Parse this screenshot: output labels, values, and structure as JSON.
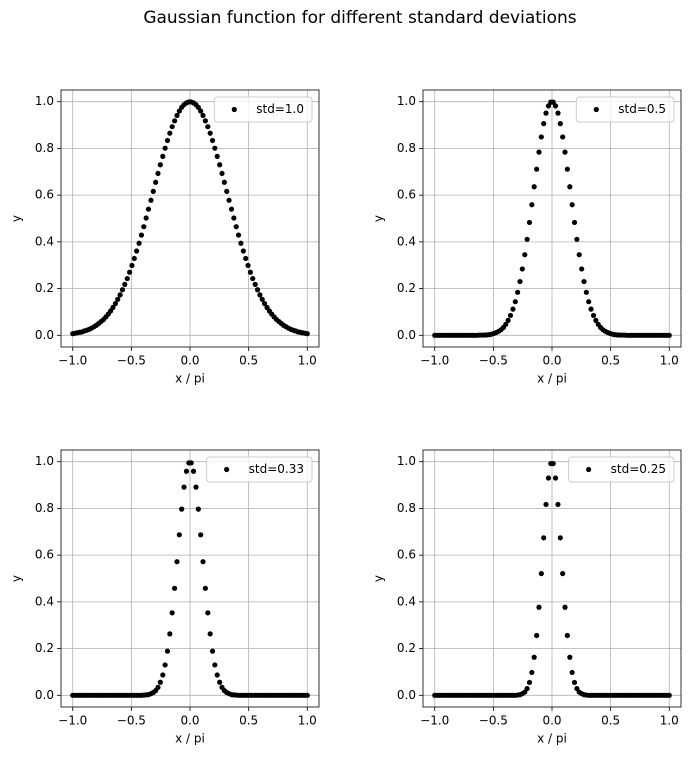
{
  "suptitle": "Gaussian function for different standard deviations",
  "chart_data": [
    {
      "type": "scatter",
      "xlabel": "x / pi",
      "ylabel": "y",
      "xlim": [
        -1.1,
        1.1
      ],
      "ylim": [
        -0.05,
        1.05
      ],
      "xticks": [
        {
          "value": -1,
          "label": "−1.0"
        },
        {
          "value": -0.5,
          "label": "−0.5"
        },
        {
          "value": 0,
          "label": "0.0"
        },
        0.5,
        {
          "value": 1,
          "label": "1.0"
        }
      ],
      "yticks": [
        {
          "value": 0,
          "label": "0.0"
        },
        0.2,
        0.4,
        0.6,
        0.8,
        {
          "value": 1,
          "label": "1.0"
        }
      ],
      "grid": true,
      "legend": "upper right",
      "x": [
        -1,
        -0.98,
        -0.96,
        -0.939,
        -0.919,
        -0.899,
        -0.879,
        -0.859,
        -0.838,
        -0.818,
        -0.798,
        -0.778,
        -0.758,
        -0.737,
        -0.717,
        -0.697,
        -0.677,
        -0.657,
        -0.636,
        -0.616,
        -0.596,
        -0.576,
        -0.556,
        -0.535,
        -0.515,
        -0.495,
        -0.475,
        -0.455,
        -0.434,
        -0.414,
        -0.394,
        -0.374,
        -0.354,
        -0.333,
        -0.313,
        -0.293,
        -0.273,
        -0.253,
        -0.232,
        -0.212,
        -0.192,
        -0.172,
        -0.152,
        -0.131,
        -0.111,
        -0.091,
        -0.071,
        -0.051,
        -0.03,
        -0.01,
        0.01,
        0.03,
        0.051,
        0.071,
        0.091,
        0.111,
        0.131,
        0.152,
        0.172,
        0.192,
        0.212,
        0.232,
        0.253,
        0.273,
        0.293,
        0.313,
        0.333,
        0.354,
        0.374,
        0.394,
        0.414,
        0.434,
        0.455,
        0.475,
        0.495,
        0.515,
        0.535,
        0.556,
        0.576,
        0.596,
        0.616,
        0.636,
        0.657,
        0.677,
        0.697,
        0.717,
        0.737,
        0.758,
        0.778,
        0.798,
        0.818,
        0.838,
        0.859,
        0.879,
        0.899,
        0.919,
        0.939,
        0.96,
        0.98,
        1
      ],
      "series": [
        {
          "name": "std=1.0",
          "color": "#000000",
          "values": [
            0.007,
            0.009,
            0.011,
            0.013,
            0.015,
            0.019,
            0.022,
            0.026,
            0.031,
            0.037,
            0.043,
            0.051,
            0.059,
            0.068,
            0.079,
            0.091,
            0.104,
            0.119,
            0.136,
            0.154,
            0.173,
            0.195,
            0.218,
            0.243,
            0.27,
            0.299,
            0.329,
            0.361,
            0.394,
            0.429,
            0.465,
            0.502,
            0.54,
            0.578,
            0.616,
            0.655,
            0.693,
            0.73,
            0.766,
            0.801,
            0.834,
            0.865,
            0.893,
            0.918,
            0.941,
            0.96,
            0.976,
            0.987,
            0.995,
            0.999,
            0.999,
            0.995,
            0.987,
            0.976,
            0.96,
            0.941,
            0.918,
            0.893,
            0.865,
            0.834,
            0.801,
            0.766,
            0.73,
            0.693,
            0.655,
            0.616,
            0.578,
            0.54,
            0.502,
            0.465,
            0.429,
            0.394,
            0.361,
            0.329,
            0.299,
            0.27,
            0.243,
            0.218,
            0.195,
            0.173,
            0.154,
            0.136,
            0.119,
            0.104,
            0.091,
            0.079,
            0.068,
            0.059,
            0.051,
            0.043,
            0.037,
            0.031,
            0.026,
            0.022,
            0.019,
            0.015,
            0.013,
            0.011,
            0.009,
            0.007
          ]
        }
      ]
    },
    {
      "type": "scatter",
      "xlabel": "x / pi",
      "ylabel": "y",
      "xlim": [
        -1.1,
        1.1
      ],
      "ylim": [
        -0.05,
        1.05
      ],
      "xticks": [
        {
          "value": -1,
          "label": "−1.0"
        },
        {
          "value": -0.5,
          "label": "−0.5"
        },
        {
          "value": 0,
          "label": "0.0"
        },
        0.5,
        {
          "value": 1,
          "label": "1.0"
        }
      ],
      "yticks": [
        {
          "value": 0,
          "label": "0.0"
        },
        0.2,
        0.4,
        0.6,
        0.8,
        {
          "value": 1,
          "label": "1.0"
        }
      ],
      "grid": true,
      "legend": "upper right",
      "x": [
        -1,
        -0.98,
        -0.96,
        -0.939,
        -0.919,
        -0.899,
        -0.879,
        -0.859,
        -0.838,
        -0.818,
        -0.798,
        -0.778,
        -0.758,
        -0.737,
        -0.717,
        -0.697,
        -0.677,
        -0.657,
        -0.636,
        -0.616,
        -0.596,
        -0.576,
        -0.556,
        -0.535,
        -0.515,
        -0.495,
        -0.475,
        -0.455,
        -0.434,
        -0.414,
        -0.394,
        -0.374,
        -0.354,
        -0.333,
        -0.313,
        -0.293,
        -0.273,
        -0.253,
        -0.232,
        -0.212,
        -0.192,
        -0.172,
        -0.152,
        -0.131,
        -0.111,
        -0.091,
        -0.071,
        -0.051,
        -0.03,
        -0.01,
        0.01,
        0.03,
        0.051,
        0.071,
        0.091,
        0.111,
        0.131,
        0.152,
        0.172,
        0.192,
        0.212,
        0.232,
        0.253,
        0.273,
        0.293,
        0.313,
        0.333,
        0.354,
        0.374,
        0.394,
        0.414,
        0.434,
        0.455,
        0.475,
        0.495,
        0.515,
        0.535,
        0.556,
        0.576,
        0.596,
        0.616,
        0.636,
        0.657,
        0.677,
        0.697,
        0.717,
        0.737,
        0.758,
        0.778,
        0.798,
        0.818,
        0.838,
        0.859,
        0.879,
        0.899,
        0.919,
        0.939,
        0.96,
        0.98,
        1
      ],
      "series": [
        {
          "name": "std=0.5",
          "color": "#000000",
          "values": [
            0,
            0,
            0,
            0,
            0,
            0,
            0,
            0,
            0,
            0,
            0,
            0,
            0,
            0,
            0,
            0,
            0,
            0,
            0,
            0.001,
            0.001,
            0.001,
            0.002,
            0.003,
            0.005,
            0.008,
            0.012,
            0.017,
            0.024,
            0.034,
            0.047,
            0.064,
            0.085,
            0.112,
            0.144,
            0.184,
            0.23,
            0.284,
            0.345,
            0.411,
            0.483,
            0.559,
            0.636,
            0.711,
            0.784,
            0.849,
            0.906,
            0.951,
            0.982,
            0.998,
            0.998,
            0.982,
            0.951,
            0.906,
            0.849,
            0.784,
            0.711,
            0.636,
            0.559,
            0.483,
            0.411,
            0.345,
            0.284,
            0.23,
            0.184,
            0.144,
            0.112,
            0.085,
            0.064,
            0.047,
            0.034,
            0.024,
            0.017,
            0.012,
            0.008,
            0.005,
            0.003,
            0.002,
            0.001,
            0.001,
            0.001,
            0,
            0,
            0,
            0,
            0,
            0,
            0,
            0,
            0,
            0,
            0,
            0,
            0,
            0,
            0,
            0,
            0,
            0,
            0
          ]
        }
      ]
    },
    {
      "type": "scatter",
      "xlabel": "x / pi",
      "ylabel": "y",
      "xlim": [
        -1.1,
        1.1
      ],
      "ylim": [
        -0.05,
        1.05
      ],
      "xticks": [
        {
          "value": -1,
          "label": "−1.0"
        },
        {
          "value": -0.5,
          "label": "−0.5"
        },
        {
          "value": 0,
          "label": "0.0"
        },
        0.5,
        {
          "value": 1,
          "label": "1.0"
        }
      ],
      "yticks": [
        {
          "value": 0,
          "label": "0.0"
        },
        0.2,
        0.4,
        0.6,
        0.8,
        {
          "value": 1,
          "label": "1.0"
        }
      ],
      "grid": true,
      "legend": "upper right",
      "x": [
        -1,
        -0.98,
        -0.96,
        -0.939,
        -0.919,
        -0.899,
        -0.879,
        -0.859,
        -0.838,
        -0.818,
        -0.798,
        -0.778,
        -0.758,
        -0.737,
        -0.717,
        -0.697,
        -0.677,
        -0.657,
        -0.636,
        -0.616,
        -0.596,
        -0.576,
        -0.556,
        -0.535,
        -0.515,
        -0.495,
        -0.475,
        -0.455,
        -0.434,
        -0.414,
        -0.394,
        -0.374,
        -0.354,
        -0.333,
        -0.313,
        -0.293,
        -0.273,
        -0.253,
        -0.232,
        -0.212,
        -0.192,
        -0.172,
        -0.152,
        -0.131,
        -0.111,
        -0.091,
        -0.071,
        -0.051,
        -0.03,
        -0.01,
        0.01,
        0.03,
        0.051,
        0.071,
        0.091,
        0.111,
        0.131,
        0.152,
        0.172,
        0.192,
        0.212,
        0.232,
        0.253,
        0.273,
        0.293,
        0.313,
        0.333,
        0.354,
        0.374,
        0.394,
        0.414,
        0.434,
        0.455,
        0.475,
        0.495,
        0.515,
        0.535,
        0.556,
        0.576,
        0.596,
        0.616,
        0.636,
        0.657,
        0.677,
        0.697,
        0.717,
        0.737,
        0.758,
        0.778,
        0.798,
        0.818,
        0.838,
        0.859,
        0.879,
        0.899,
        0.919,
        0.939,
        0.96,
        0.98,
        1
      ],
      "series": [
        {
          "name": "std=0.33",
          "color": "#000000",
          "values": [
            0,
            0,
            0,
            0,
            0,
            0,
            0,
            0,
            0,
            0,
            0,
            0,
            0,
            0,
            0,
            0,
            0,
            0,
            0,
            0,
            0,
            0,
            0,
            0,
            0,
            0,
            0,
            0,
            0,
            0,
            0.001,
            0.002,
            0.003,
            0.007,
            0.012,
            0.02,
            0.034,
            0.056,
            0.087,
            0.13,
            0.189,
            0.263,
            0.353,
            0.458,
            0.572,
            0.687,
            0.797,
            0.891,
            0.959,
            0.995,
            0.995,
            0.959,
            0.891,
            0.797,
            0.687,
            0.572,
            0.458,
            0.353,
            0.263,
            0.189,
            0.13,
            0.087,
            0.056,
            0.034,
            0.02,
            0.012,
            0.007,
            0.003,
            0.002,
            0.001,
            0,
            0,
            0,
            0,
            0,
            0,
            0,
            0,
            0,
            0,
            0,
            0,
            0,
            0,
            0,
            0,
            0,
            0,
            0,
            0,
            0,
            0,
            0,
            0,
            0,
            0,
            0,
            0,
            0,
            0
          ]
        }
      ]
    },
    {
      "type": "scatter",
      "xlabel": "x / pi",
      "ylabel": "y",
      "xlim": [
        -1.1,
        1.1
      ],
      "ylim": [
        -0.05,
        1.05
      ],
      "xticks": [
        {
          "value": -1,
          "label": "−1.0"
        },
        {
          "value": -0.5,
          "label": "−0.5"
        },
        {
          "value": 0,
          "label": "0.0"
        },
        0.5,
        {
          "value": 1,
          "label": "1.0"
        }
      ],
      "yticks": [
        {
          "value": 0,
          "label": "0.0"
        },
        0.2,
        0.4,
        0.6,
        0.8,
        {
          "value": 1,
          "label": "1.0"
        }
      ],
      "grid": true,
      "legend": "upper right",
      "x": [
        -1,
        -0.98,
        -0.96,
        -0.939,
        -0.919,
        -0.899,
        -0.879,
        -0.859,
        -0.838,
        -0.818,
        -0.798,
        -0.778,
        -0.758,
        -0.737,
        -0.717,
        -0.697,
        -0.677,
        -0.657,
        -0.636,
        -0.616,
        -0.596,
        -0.576,
        -0.556,
        -0.535,
        -0.515,
        -0.495,
        -0.475,
        -0.455,
        -0.434,
        -0.414,
        -0.394,
        -0.374,
        -0.354,
        -0.333,
        -0.313,
        -0.293,
        -0.273,
        -0.253,
        -0.232,
        -0.212,
        -0.192,
        -0.172,
        -0.152,
        -0.131,
        -0.111,
        -0.091,
        -0.071,
        -0.051,
        -0.03,
        -0.01,
        0.01,
        0.03,
        0.051,
        0.071,
        0.091,
        0.111,
        0.131,
        0.152,
        0.172,
        0.192,
        0.212,
        0.232,
        0.253,
        0.273,
        0.293,
        0.313,
        0.333,
        0.354,
        0.374,
        0.394,
        0.414,
        0.434,
        0.455,
        0.475,
        0.495,
        0.515,
        0.535,
        0.556,
        0.576,
        0.596,
        0.616,
        0.636,
        0.657,
        0.677,
        0.697,
        0.717,
        0.737,
        0.758,
        0.778,
        0.798,
        0.818,
        0.838,
        0.859,
        0.879,
        0.899,
        0.919,
        0.939,
        0.96,
        0.98,
        1
      ],
      "series": [
        {
          "name": "std=0.25",
          "color": "#000000",
          "values": [
            0,
            0,
            0,
            0,
            0,
            0,
            0,
            0,
            0,
            0,
            0,
            0,
            0,
            0,
            0,
            0,
            0,
            0,
            0,
            0,
            0,
            0,
            0,
            0,
            0,
            0,
            0,
            0,
            0,
            0,
            0,
            0,
            0,
            0,
            0,
            0.001,
            0.003,
            0.007,
            0.014,
            0.029,
            0.055,
            0.098,
            0.163,
            0.256,
            0.377,
            0.521,
            0.674,
            0.817,
            0.93,
            0.992,
            0.992,
            0.93,
            0.817,
            0.674,
            0.521,
            0.377,
            0.256,
            0.163,
            0.098,
            0.055,
            0.029,
            0.014,
            0.007,
            0.003,
            0.001,
            0,
            0,
            0,
            0,
            0,
            0,
            0,
            0,
            0,
            0,
            0,
            0,
            0,
            0,
            0,
            0,
            0,
            0,
            0,
            0,
            0,
            0,
            0,
            0,
            0,
            0,
            0,
            0,
            0,
            0,
            0,
            0,
            0,
            0,
            0
          ]
        }
      ]
    }
  ]
}
